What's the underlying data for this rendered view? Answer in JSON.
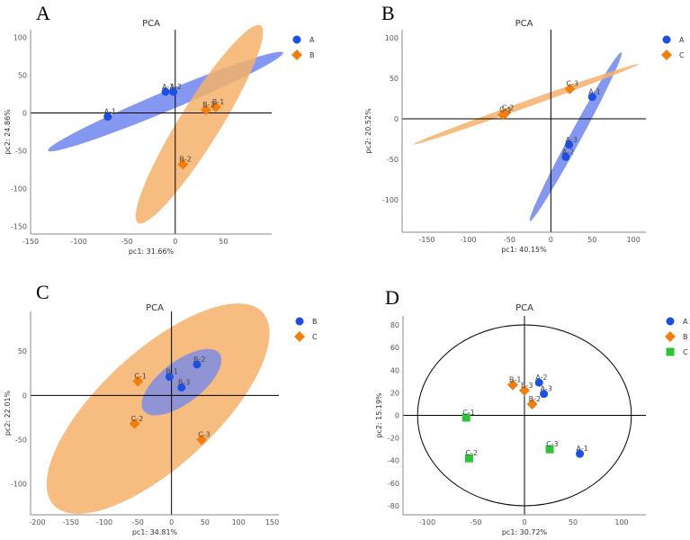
{
  "colors": {
    "A": "#1f4fe0",
    "B": "#f07f0f",
    "C": "#2ec43a",
    "ellipseA": "#6e86f0",
    "ellipseB": "#f4b06a",
    "axis": "#000000",
    "tick": "#555555"
  },
  "chart_data": [
    {
      "panel": "A",
      "type": "scatter",
      "title": "PCA",
      "xlabel": "pc1: 31.66%",
      "ylabel": "pc2: 24.86%",
      "xlim": [
        -150,
        100
      ],
      "ylim": [
        -160,
        110
      ],
      "xticks": [
        -150,
        -100,
        -50,
        0,
        50
      ],
      "yticks": [
        100,
        50,
        0,
        -50,
        -100,
        -150
      ],
      "legend": [
        {
          "name": "A",
          "marker": "circle",
          "color": "A"
        },
        {
          "name": "B",
          "marker": "diamond",
          "color": "B"
        }
      ],
      "ellipses": [
        {
          "group": "A",
          "cx": -10,
          "cy": 15,
          "rx": 138,
          "ry": 12,
          "angle": 28,
          "color": "ellipseA",
          "opacity": 0.85
        },
        {
          "group": "B",
          "cx": 25,
          "cy": -15,
          "rx": 145,
          "ry": 22,
          "angle": 64,
          "color": "ellipseB",
          "opacity": 0.85
        }
      ],
      "points": [
        {
          "label": "A-1",
          "x": -70,
          "y": -5,
          "group": "A"
        },
        {
          "label": "A-3",
          "x": -10,
          "y": 28,
          "group": "A"
        },
        {
          "label": "A-2",
          "x": -2,
          "y": 28,
          "group": "A"
        },
        {
          "label": "B-1",
          "x": 42,
          "y": 8,
          "group": "B"
        },
        {
          "label": "B-3",
          "x": 32,
          "y": 4,
          "group": "B"
        },
        {
          "label": "B-2",
          "x": 8,
          "y": -68,
          "group": "B"
        }
      ]
    },
    {
      "panel": "B",
      "type": "scatter",
      "title": "PCA",
      "xlabel": "pc1: 40.15%",
      "ylabel": "pc2: 20.52%",
      "xlim": [
        -180,
        115
      ],
      "ylim": [
        -140,
        110
      ],
      "xticks": [
        -150,
        -100,
        -50,
        0,
        50,
        100
      ],
      "yticks": [
        100,
        50,
        0,
        -50,
        -100
      ],
      "legend": [
        {
          "name": "A",
          "marker": "circle",
          "color": "A"
        },
        {
          "name": "C",
          "marker": "diamond",
          "color": "B"
        }
      ],
      "ellipses": [
        {
          "group": "A",
          "cx": 30,
          "cy": -22,
          "rx": 118,
          "ry": 7,
          "angle": 62,
          "color": "ellipseA",
          "opacity": 0.85
        },
        {
          "group": "C",
          "cx": -30,
          "cy": 18,
          "rx": 145,
          "ry": 4,
          "angle": 20,
          "color": "ellipseB",
          "opacity": 0.85
        }
      ],
      "points": [
        {
          "label": "C-3",
          "x": 23,
          "y": 37,
          "group": "C"
        },
        {
          "label": "C-2",
          "x": -55,
          "y": 7,
          "group": "C"
        },
        {
          "label": "C-1",
          "x": -58,
          "y": 5,
          "group": "C"
        },
        {
          "label": "A-1",
          "x": 50,
          "y": 27,
          "group": "A"
        },
        {
          "label": "A-3",
          "x": 22,
          "y": -32,
          "group": "A"
        },
        {
          "label": "A-2",
          "x": 18,
          "y": -47,
          "group": "A"
        }
      ]
    },
    {
      "panel": "C",
      "type": "scatter",
      "title": "PCA",
      "xlabel": "pc1: 34.81%",
      "ylabel": "pc2: 22.01%",
      "xlim": [
        -210,
        160
      ],
      "ylim": [
        -135,
        95
      ],
      "xticks": [
        -200,
        -150,
        -100,
        -50,
        0,
        50,
        100,
        150
      ],
      "yticks": [
        50,
        0,
        -50,
        -100
      ],
      "legend": [
        {
          "name": "B",
          "marker": "circle",
          "color": "A"
        },
        {
          "name": "C",
          "marker": "diamond",
          "color": "B"
        }
      ],
      "ellipses": [
        {
          "group": "C",
          "cx": -20,
          "cy": -15,
          "rx": 190,
          "ry": 70,
          "angle": 35,
          "color": "ellipseB",
          "opacity": 0.85
        },
        {
          "group": "B",
          "cx": 15,
          "cy": 15,
          "rx": 65,
          "ry": 25,
          "angle": 30,
          "color": "ellipseA",
          "opacity": 0.75
        }
      ],
      "points": [
        {
          "label": "B-2",
          "x": 38,
          "y": 35,
          "group": "B"
        },
        {
          "label": "B-1",
          "x": -3,
          "y": 21,
          "group": "B"
        },
        {
          "label": "B-3",
          "x": 15,
          "y": 9,
          "group": "B"
        },
        {
          "label": "C-1",
          "x": -50,
          "y": 16,
          "group": "C"
        },
        {
          "label": "C-2",
          "x": -55,
          "y": -32,
          "group": "C"
        },
        {
          "label": "C-3",
          "x": 45,
          "y": -50,
          "group": "C"
        }
      ]
    },
    {
      "panel": "D",
      "type": "scatter",
      "title": "PCA",
      "xlabel": "pc1: 30.72%",
      "ylabel": "pc2: 15.19%",
      "xlim": [
        -125,
        125
      ],
      "ylim": [
        -88,
        88
      ],
      "xticks": [
        -100,
        -50,
        0,
        50,
        100
      ],
      "yticks": [
        80,
        60,
        40,
        20,
        0,
        -20,
        -40,
        -60,
        -80
      ],
      "legend": [
        {
          "name": "A",
          "marker": "circle",
          "color": "A"
        },
        {
          "name": "B",
          "marker": "diamond",
          "color": "B"
        },
        {
          "name": "C",
          "marker": "square",
          "color": "C"
        }
      ],
      "ellipses": [
        {
          "group": "all",
          "cx": 0,
          "cy": 0,
          "rx": 110,
          "ry": 80,
          "angle": 0,
          "color": "none",
          "opacity": 1
        }
      ],
      "points": [
        {
          "label": "A-2",
          "x": 15,
          "y": 29,
          "group": "A"
        },
        {
          "label": "A-3",
          "x": 20,
          "y": 19,
          "group": "A"
        },
        {
          "label": "A-1",
          "x": 57,
          "y": -34,
          "group": "A"
        },
        {
          "label": "B-1",
          "x": -12,
          "y": 27,
          "group": "B"
        },
        {
          "label": "B-3",
          "x": 0,
          "y": 22,
          "group": "B"
        },
        {
          "label": "B-2",
          "x": 8,
          "y": 10,
          "group": "B"
        },
        {
          "label": "C-1",
          "x": -60,
          "y": -2,
          "group": "C"
        },
        {
          "label": "C-2",
          "x": -57,
          "y": -38,
          "group": "C"
        },
        {
          "label": "C-3",
          "x": 26,
          "y": -30,
          "group": "C"
        }
      ]
    }
  ]
}
